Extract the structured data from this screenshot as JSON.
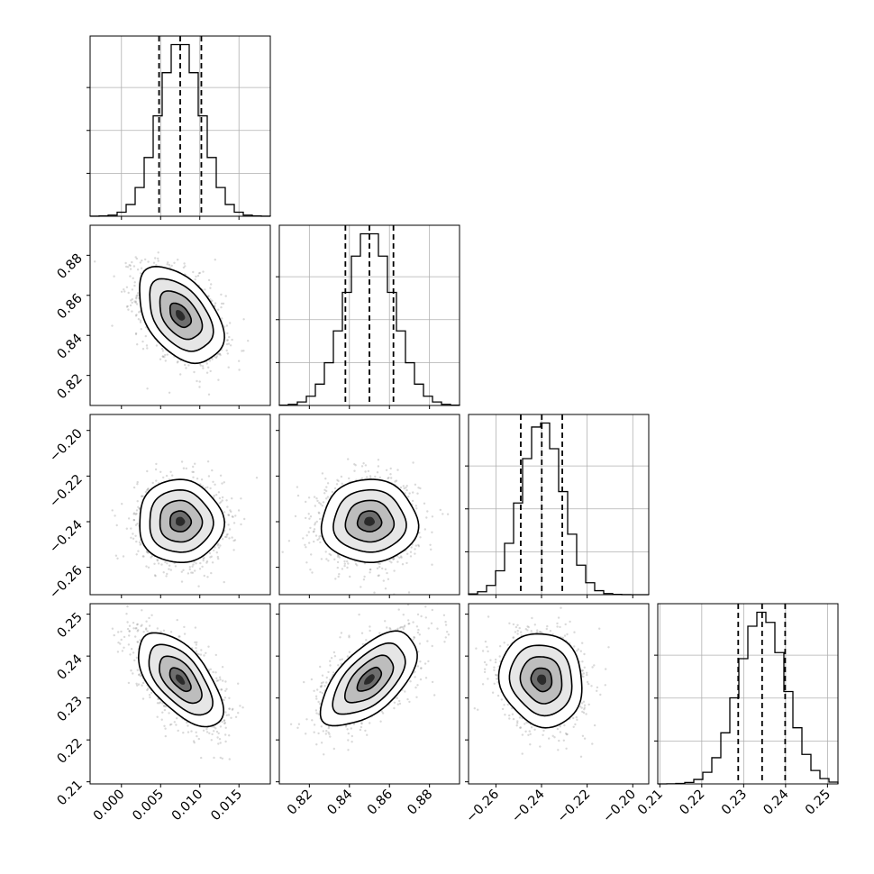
{
  "chart_data": {
    "type": "corner",
    "parameters": [
      "",
      "",
      "",
      ""
    ],
    "axis_ranges": [
      [
        -0.004,
        0.019
      ],
      [
        0.805,
        0.895
      ],
      [
        -0.272,
        -0.193
      ],
      [
        0.2095,
        0.2525
      ]
    ],
    "ticks": [
      {
        "values": [
          0.0,
          0.005,
          0.01,
          0.015
        ],
        "labels": [
          "0.000",
          "0.005",
          "0.010",
          "0.015"
        ]
      },
      {
        "values": [
          0.82,
          0.84,
          0.86,
          0.88
        ],
        "labels": [
          "0.82",
          "0.84",
          "0.86",
          "0.88"
        ]
      },
      {
        "values": [
          -0.26,
          -0.24,
          -0.22,
          -0.2
        ],
        "labels": [
          "−0.26",
          "−0.24",
          "−0.22",
          "−0.20"
        ]
      },
      {
        "values": [
          0.21,
          0.22,
          0.23,
          0.24,
          0.25
        ],
        "labels": [
          "0.21",
          "0.22",
          "0.23",
          "0.24",
          "0.25"
        ]
      }
    ],
    "quantiles": [
      [
        0.0048,
        0.0075,
        0.0102
      ],
      [
        0.838,
        0.85,
        0.862
      ],
      [
        -0.2491,
        -0.2399,
        -0.2309
      ],
      [
        0.2287,
        0.2344,
        0.2399
      ]
    ],
    "means": [
      0.0075,
      0.85,
      -0.2399,
      0.2344
    ],
    "sigmas": [
      0.0027,
      0.012,
      0.0091,
      0.0056
    ],
    "correlations": [
      {
        "i": 1,
        "j": 0,
        "rho": -0.45
      },
      {
        "i": 2,
        "j": 0,
        "rho": -0.02
      },
      {
        "i": 2,
        "j": 1,
        "rho": 0.0
      },
      {
        "i": 3,
        "j": 0,
        "rho": -0.6
      },
      {
        "i": 3,
        "j": 1,
        "rho": 0.6
      },
      {
        "i": 3,
        "j": 2,
        "rho": -0.1
      }
    ],
    "histogram_bins": 20,
    "grid": true,
    "contour_levels_sigma": [
      0.5,
      1.0,
      1.5,
      2.0
    ]
  }
}
